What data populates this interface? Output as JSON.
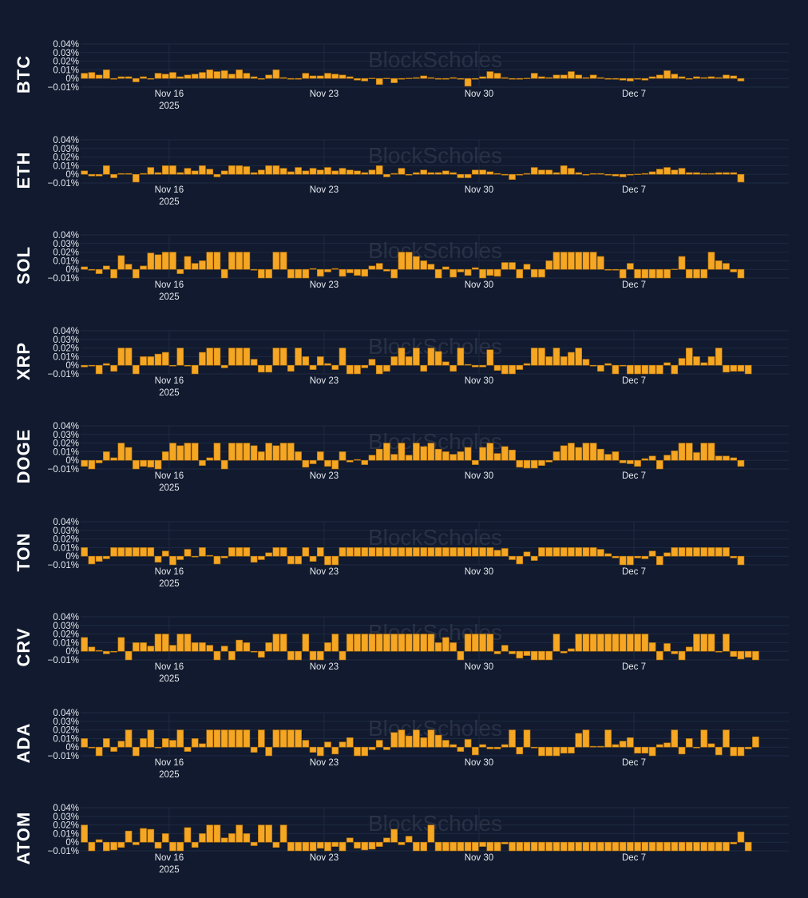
{
  "colors": {
    "background": "#111a2e",
    "bar": "#f5a623",
    "bar_stroke": "#b0700a",
    "grid": "#1e2a44",
    "text": "#e6e9ef",
    "watermark": "#3a4256"
  },
  "watermark": "BlockScholes",
  "x_start": "2025-11-12",
  "x_end": "2025-12-14",
  "x_ticks": [
    {
      "date": "2025-11-16",
      "label": "Nov 16",
      "sublabel": "2025"
    },
    {
      "date": "2025-11-23",
      "label": "Nov 23",
      "sublabel": ""
    },
    {
      "date": "2025-11-30",
      "label": "Nov 30",
      "sublabel": ""
    },
    {
      "date": "2025-12-07",
      "label": "Dec 7",
      "sublabel": ""
    }
  ],
  "chart_data": [
    {
      "type": "bar",
      "asset": "BTC",
      "x_start": "2025-11-12",
      "interval_hours": 8,
      "ylim": [
        -0.01,
        0.04
      ],
      "y_ticks": [
        {
          "value": 0.04,
          "label": "0.04%"
        },
        {
          "value": 0.03,
          "label": "0.03%"
        },
        {
          "value": 0.02,
          "label": "0.02%"
        },
        {
          "value": 0.01,
          "label": "0.01%"
        },
        {
          "value": 0,
          "label": "0%"
        },
        {
          "value": -0.01,
          "label": "−0.01%"
        }
      ],
      "values": [
        0.006,
        0.007,
        0.004,
        0.01,
        -0.001,
        0.002,
        0.002,
        -0.004,
        0.002,
        -0.001,
        0.006,
        0.005,
        0.007,
        0.002,
        0.004,
        0.005,
        0.007,
        0.01,
        0.008,
        0.009,
        0.005,
        0.01,
        0.006,
        0.002,
        -0.001,
        0.004,
        0.01,
        0.001,
        -0.001,
        -0.001,
        0.006,
        0.003,
        0.003,
        0.006,
        0.005,
        0.004,
        0.002,
        -0.002,
        -0.003,
        0,
        -0.007,
        0,
        -0.005,
        -0.001,
        0,
        0.001,
        0.003,
        0.001,
        -0.001,
        -0.001,
        0.001,
        -0.001,
        -0.009,
        -0.001,
        0.002,
        0.008,
        0.006,
        0.001,
        -0.001,
        -0.001,
        0,
        0.006,
        0.002,
        0.001,
        0.004,
        0.004,
        0.008,
        0.004,
        0.001,
        0.004,
        0.001,
        -0.001,
        -0.001,
        -0.002,
        -0.003,
        -0.001,
        -0.002,
        0.002,
        0.004,
        0.009,
        0.005,
        0.002,
        -0.001,
        0.002,
        0.001,
        0.002,
        0.001,
        0.004,
        0.003,
        -0.003
      ]
    },
    {
      "type": "bar",
      "asset": "ETH",
      "x_start": "2025-11-12",
      "interval_hours": 8,
      "ylim": [
        -0.01,
        0.04
      ],
      "y_ticks": [
        {
          "value": 0.04,
          "label": "0.04%"
        },
        {
          "value": 0.03,
          "label": "0.03%"
        },
        {
          "value": 0.02,
          "label": "0.02%"
        },
        {
          "value": 0.01,
          "label": "0.01%"
        },
        {
          "value": 0,
          "label": "0%"
        },
        {
          "value": -0.01,
          "label": "−0.01%"
        }
      ],
      "values": [
        0.004,
        -0.002,
        -0.002,
        0.01,
        -0.004,
        0.001,
        0.001,
        -0.009,
        0.001,
        0.008,
        0.002,
        0.01,
        0.01,
        0.002,
        0.007,
        0.004,
        0.01,
        0.006,
        -0.003,
        0.004,
        0.01,
        0.01,
        0.009,
        0.002,
        0.005,
        0.01,
        0.01,
        0.007,
        0.003,
        0.008,
        0.004,
        0.007,
        0.005,
        0.008,
        0.004,
        0.007,
        0.005,
        0.004,
        0.002,
        0.005,
        0.01,
        -0.003,
        0.001,
        0.007,
        -0.001,
        0.002,
        0.005,
        0.002,
        0.002,
        0.004,
        0.002,
        -0.004,
        -0.004,
        0.005,
        0.005,
        0.003,
        0.001,
        -0.001,
        -0.006,
        -0.001,
        0.001,
        0.008,
        0.005,
        0.005,
        0.002,
        0.01,
        0.007,
        0.002,
        -0.001,
        0.001,
        0.001,
        -0.001,
        -0.002,
        -0.003,
        -0.001,
        0,
        0.001,
        0.003,
        0.006,
        0.008,
        0.005,
        0.007,
        0.002,
        0.002,
        0.001,
        0.001,
        0.002,
        0.002,
        0.002,
        -0.009
      ]
    },
    {
      "type": "bar",
      "asset": "SOL",
      "x_start": "2025-11-12",
      "interval_hours": 8,
      "ylim": [
        -0.01,
        0.04
      ],
      "y_ticks": [
        {
          "value": 0.04,
          "label": "0.04%"
        },
        {
          "value": 0.03,
          "label": "0.03%"
        },
        {
          "value": 0.02,
          "label": "0.02%"
        },
        {
          "value": 0.01,
          "label": "0.01%"
        },
        {
          "value": 0,
          "label": "0%"
        },
        {
          "value": -0.01,
          "label": "−0.01%"
        }
      ],
      "values": [
        0.003,
        -0.001,
        -0.005,
        0.004,
        -0.01,
        0.016,
        0.006,
        -0.01,
        0.004,
        0.019,
        0.017,
        0.02,
        0.02,
        -0.005,
        0.015,
        0.007,
        0.01,
        0.02,
        0.02,
        -0.01,
        0.02,
        0.02,
        0.02,
        -0.001,
        -0.01,
        -0.01,
        0.02,
        0.02,
        -0.01,
        -0.01,
        -0.01,
        0.001,
        -0.008,
        -0.003,
        0.001,
        -0.008,
        -0.004,
        -0.007,
        -0.008,
        0.004,
        0.007,
        -0.002,
        -0.01,
        0.02,
        0.02,
        0.015,
        0.01,
        0.006,
        -0.01,
        0.003,
        -0.009,
        -0.003,
        -0.007,
        0.002,
        -0.01,
        -0.007,
        -0.008,
        0.008,
        0.008,
        -0.01,
        0.006,
        -0.009,
        -0.009,
        0.01,
        0.02,
        0.02,
        0.02,
        0.02,
        0.02,
        0.02,
        0.015,
        -0.001,
        -0.001,
        -0.01,
        0.007,
        -0.01,
        -0.01,
        -0.01,
        -0.01,
        -0.01,
        0,
        0.015,
        -0.01,
        -0.01,
        -0.01,
        0.02,
        0.01,
        0.007,
        -0.003,
        -0.01
      ]
    },
    {
      "type": "bar",
      "asset": "XRP",
      "x_start": "2025-11-12",
      "interval_hours": 8,
      "ylim": [
        -0.01,
        0.04
      ],
      "y_ticks": [
        {
          "value": 0.04,
          "label": "0.04%"
        },
        {
          "value": 0.03,
          "label": "0.03%"
        },
        {
          "value": 0.02,
          "label": "0.02%"
        },
        {
          "value": 0.01,
          "label": "0.01%"
        },
        {
          "value": 0,
          "label": "0%"
        },
        {
          "value": -0.01,
          "label": "−0.01%"
        }
      ],
      "values": [
        -0.002,
        -0.001,
        -0.01,
        0.002,
        -0.007,
        0.02,
        0.02,
        -0.01,
        0.01,
        0.01,
        0.013,
        0.015,
        -0.001,
        0.02,
        -0.001,
        -0.01,
        0.015,
        0.02,
        0.02,
        -0.003,
        0.02,
        0.02,
        0.02,
        0.007,
        -0.008,
        -0.008,
        0.02,
        0.02,
        -0.007,
        0.02,
        0.01,
        -0.005,
        0.01,
        0.002,
        -0.005,
        0.02,
        -0.01,
        -0.01,
        -0.003,
        0.007,
        -0.01,
        -0.007,
        0.01,
        0.02,
        0.01,
        0.02,
        -0.007,
        0.02,
        0.016,
        0.004,
        -0.007,
        0.02,
        0.001,
        -0.002,
        -0.002,
        0.018,
        -0.006,
        -0.01,
        -0.01,
        -0.005,
        0.002,
        0.02,
        0.02,
        0.01,
        0.02,
        0.01,
        0.015,
        0.02,
        0.007,
        -0.001,
        -0.007,
        0.002,
        -0.01,
        -0.001,
        -0.01,
        -0.01,
        -0.01,
        -0.01,
        -0.01,
        0.003,
        -0.01,
        0.008,
        0.02,
        0.01,
        0.003,
        0.01,
        0.02,
        -0.008,
        -0.007,
        -0.007,
        -0.01
      ]
    },
    {
      "type": "bar",
      "asset": "DOGE",
      "x_start": "2025-11-12",
      "interval_hours": 8,
      "ylim": [
        -0.01,
        0.04
      ],
      "y_ticks": [
        {
          "value": 0.04,
          "label": "0.04%"
        },
        {
          "value": 0.03,
          "label": "0.03%"
        },
        {
          "value": 0.02,
          "label": "0.02%"
        },
        {
          "value": 0.01,
          "label": "0.01%"
        },
        {
          "value": 0,
          "label": "0%"
        },
        {
          "value": -0.01,
          "label": "−0.01%"
        }
      ],
      "values": [
        -0.007,
        -0.01,
        -0.003,
        0.01,
        0.003,
        0.02,
        0.015,
        -0.01,
        -0.007,
        -0.008,
        -0.01,
        0.01,
        0.02,
        0.017,
        0.02,
        0.02,
        -0.006,
        0.003,
        0.02,
        -0.01,
        0.02,
        0.02,
        0.02,
        0.017,
        0.01,
        0.02,
        0.017,
        0.02,
        0.02,
        0.01,
        -0.008,
        -0.004,
        0.01,
        -0.007,
        -0.01,
        0.01,
        -0.002,
        0.001,
        -0.005,
        0.006,
        0.013,
        0.02,
        0.007,
        0.02,
        0.006,
        0.02,
        0.016,
        0.02,
        0.013,
        0.01,
        0.007,
        0.01,
        0.015,
        -0.005,
        0.015,
        0.02,
        0.008,
        0.016,
        0.012,
        -0.008,
        -0.009,
        -0.009,
        -0.006,
        -0.002,
        0.01,
        0.017,
        0.02,
        0.015,
        0.02,
        0.02,
        0.013,
        0.007,
        0.01,
        -0.003,
        -0.004,
        -0.007,
        0.002,
        0.005,
        -0.01,
        0.006,
        0.011,
        0.02,
        0.02,
        0.009,
        0.02,
        0.02,
        0.005,
        0.005,
        0.003,
        -0.007
      ]
    },
    {
      "type": "bar",
      "asset": "TON",
      "x_start": "2025-11-12",
      "interval_hours": 8,
      "ylim": [
        -0.01,
        0.04
      ],
      "y_ticks": [
        {
          "value": 0.04,
          "label": "0.04%"
        },
        {
          "value": 0.03,
          "label": "0.03%"
        },
        {
          "value": 0.02,
          "label": "0.02%"
        },
        {
          "value": 0.01,
          "label": "0.01%"
        },
        {
          "value": 0,
          "label": "0%"
        },
        {
          "value": -0.01,
          "label": "−0.01%"
        }
      ],
      "values": [
        0.01,
        -0.009,
        -0.006,
        -0.003,
        0.01,
        0.01,
        0.01,
        0.01,
        0.01,
        0.01,
        -0.007,
        0.006,
        -0.01,
        -0.004,
        0.008,
        -0.001,
        0.01,
        0.001,
        -0.009,
        -0.002,
        0.01,
        0.01,
        0.01,
        -0.007,
        -0.004,
        0.004,
        0.01,
        0.01,
        -0.009,
        -0.009,
        0.01,
        -0.006,
        0.01,
        -0.01,
        -0.01,
        0.01,
        0.01,
        0.01,
        0.01,
        0.01,
        0.01,
        0.01,
        0.01,
        0.01,
        0.01,
        0.01,
        0.01,
        0.01,
        0.01,
        0.01,
        0.01,
        0.01,
        0.01,
        0.01,
        0.01,
        0.01,
        0.007,
        0.009,
        -0.004,
        -0.009,
        0.005,
        -0.005,
        0.01,
        0.01,
        0.01,
        0.01,
        0.01,
        0.01,
        0.01,
        0.01,
        0.008,
        0.003,
        -0.002,
        -0.01,
        -0.01,
        -0.002,
        -0.003,
        0.006,
        -0.01,
        0.004,
        0.01,
        0.01,
        0.01,
        0.01,
        0.01,
        0.01,
        0.01,
        0.01,
        -0.002,
        -0.01
      ]
    },
    {
      "type": "bar",
      "asset": "CRV",
      "x_start": "2025-11-12",
      "interval_hours": 8,
      "ylim": [
        -0.01,
        0.04
      ],
      "y_ticks": [
        {
          "value": 0.04,
          "label": "0.04%"
        },
        {
          "value": 0.03,
          "label": "0.03%"
        },
        {
          "value": 0.02,
          "label": "0.02%"
        },
        {
          "value": 0.01,
          "label": "0.01%"
        },
        {
          "value": 0,
          "label": "0%"
        },
        {
          "value": -0.01,
          "label": "−0.01%"
        }
      ],
      "values": [
        0.016,
        0.005,
        0.001,
        -0.003,
        -0.001,
        0.016,
        -0.01,
        0.01,
        0.01,
        0.006,
        0.02,
        0.02,
        0.007,
        0.02,
        0.02,
        0.01,
        0.01,
        0.007,
        -0.01,
        0.006,
        -0.01,
        0.013,
        0.01,
        -0.001,
        -0.007,
        0.01,
        0.02,
        0.02,
        -0.01,
        -0.01,
        0.02,
        -0.01,
        -0.01,
        0.01,
        0.02,
        -0.01,
        0.02,
        0.02,
        0.02,
        0.02,
        0.02,
        0.02,
        0.02,
        0.02,
        0.02,
        0.02,
        0.02,
        0.02,
        0.01,
        0.016,
        0.01,
        -0.01,
        0.02,
        0.02,
        0.02,
        0.02,
        -0.003,
        0.007,
        -0.003,
        -0.008,
        -0.005,
        -0.01,
        -0.01,
        -0.01,
        0.02,
        -0.002,
        0.003,
        0.02,
        0.02,
        0.02,
        0.02,
        0.02,
        0.02,
        0.02,
        0.02,
        0.02,
        0.02,
        0.01,
        -0.01,
        0.009,
        -0.003,
        -0.01,
        0.005,
        0.02,
        0.02,
        0.02,
        -0.001,
        0.02,
        -0.006,
        -0.009,
        -0.007,
        -0.01
      ]
    },
    {
      "type": "bar",
      "asset": "ADA",
      "x_start": "2025-11-12",
      "interval_hours": 8,
      "ylim": [
        -0.01,
        0.04
      ],
      "y_ticks": [
        {
          "value": 0.04,
          "label": "0.04%"
        },
        {
          "value": 0.03,
          "label": "0.03%"
        },
        {
          "value": 0.02,
          "label": "0.02%"
        },
        {
          "value": 0.01,
          "label": "0.01%"
        },
        {
          "value": 0,
          "label": "0%"
        },
        {
          "value": -0.01,
          "label": "−0.01%"
        }
      ],
      "values": [
        0.01,
        -0.001,
        -0.01,
        0.01,
        -0.005,
        0.007,
        0.02,
        -0.01,
        0.01,
        0.02,
        -0.001,
        0.01,
        0.008,
        0.02,
        -0.005,
        0.01,
        0.004,
        0.02,
        0.02,
        0.02,
        0.02,
        0.02,
        0.02,
        -0.006,
        0.02,
        -0.01,
        0.02,
        0.02,
        0.02,
        0.02,
        0.008,
        -0.006,
        -0.01,
        0.006,
        -0.008,
        0.006,
        0.011,
        -0.01,
        -0.01,
        -0.003,
        0.008,
        -0.003,
        0.017,
        0.02,
        0.013,
        0.02,
        0.011,
        0.02,
        0.014,
        0.008,
        0.003,
        -0.005,
        0.009,
        -0.009,
        0.003,
        -0.002,
        -0.002,
        0.003,
        0.02,
        -0.008,
        0.02,
        -0.001,
        -0.01,
        -0.01,
        -0.01,
        -0.007,
        -0.007,
        0.016,
        0.02,
        0.001,
        0.001,
        0.02,
        0.003,
        0.007,
        0.011,
        -0.007,
        -0.007,
        -0.01,
        0.003,
        0.005,
        0.02,
        -0.008,
        0.01,
        -0.001,
        0.02,
        0.004,
        -0.009,
        0.02,
        -0.01,
        -0.01,
        -0.002,
        0.012
      ]
    },
    {
      "type": "bar",
      "asset": "ATOM",
      "x_start": "2025-11-12",
      "interval_hours": 8,
      "ylim": [
        -0.01,
        0.04
      ],
      "y_ticks": [
        {
          "value": 0.04,
          "label": "0.04%"
        },
        {
          "value": 0.03,
          "label": "0.03%"
        },
        {
          "value": 0.02,
          "label": "0.02%"
        },
        {
          "value": 0.01,
          "label": "0.01%"
        },
        {
          "value": 0,
          "label": "0%"
        },
        {
          "value": -0.01,
          "label": "−0.01%"
        }
      ],
      "values": [
        0.02,
        -0.01,
        0.003,
        -0.01,
        -0.009,
        -0.006,
        0.013,
        -0.003,
        0.016,
        0.015,
        -0.007,
        0.01,
        -0.01,
        -0.01,
        0.017,
        -0.006,
        0.01,
        0.02,
        0.02,
        0.005,
        0.01,
        0.02,
        0.01,
        -0.004,
        0.02,
        0.02,
        -0.006,
        0.02,
        -0.01,
        -0.01,
        -0.01,
        -0.01,
        -0.007,
        -0.01,
        -0.005,
        -0.01,
        0.005,
        -0.007,
        -0.009,
        -0.008,
        -0.005,
        0.005,
        0.015,
        -0.003,
        0.007,
        -0.01,
        -0.01,
        0.02,
        -0.01,
        -0.01,
        -0.01,
        -0.01,
        -0.01,
        -0.01,
        -0.005,
        -0.01,
        -0.01,
        -0.002,
        -0.01,
        -0.01,
        -0.01,
        -0.01,
        -0.01,
        -0.01,
        -0.01,
        -0.01,
        -0.01,
        -0.01,
        -0.01,
        -0.01,
        -0.01,
        -0.01,
        -0.01,
        -0.01,
        -0.01,
        -0.01,
        -0.01,
        -0.01,
        -0.01,
        -0.01,
        -0.01,
        -0.01,
        -0.01,
        -0.01,
        -0.01,
        -0.01,
        -0.01,
        -0.01,
        -0.002,
        0.012,
        -0.01
      ]
    }
  ]
}
